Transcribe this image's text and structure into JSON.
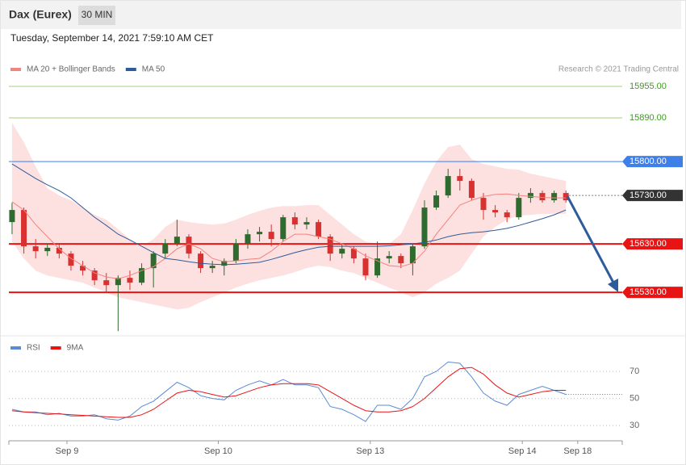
{
  "header": {
    "title": "Dax (Eurex)",
    "interval": "30 MIN",
    "timestamp": "Tuesday, September 14, 2021 7:59:10 AM CET"
  },
  "chart_data": [
    {
      "type": "candlestick",
      "credit": "Research © 2021 Trading Central",
      "candles": {
        "open": [
          15675,
          15700,
          15625,
          15615,
          15622,
          15610,
          15585,
          15575,
          15555,
          15545,
          15560,
          15550,
          15580,
          15610,
          15630,
          15645,
          15610,
          15580,
          15585,
          15595,
          15630,
          15650,
          15655,
          15640,
          15685,
          15670,
          15675,
          15645,
          15610,
          15620,
          15600,
          15565,
          15600,
          15605,
          15590,
          15625,
          15705,
          15730,
          15770,
          15760,
          15725,
          15700,
          15695,
          15685,
          15725,
          15735,
          15720,
          15735
        ],
        "high": [
          15715,
          15705,
          15640,
          15630,
          15628,
          15615,
          15595,
          15580,
          15570,
          15565,
          15575,
          15590,
          15615,
          15640,
          15680,
          15650,
          15615,
          15595,
          15600,
          15640,
          15660,
          15665,
          15670,
          15690,
          15695,
          15685,
          15680,
          15650,
          15630,
          15625,
          15610,
          15635,
          15615,
          15610,
          15630,
          15720,
          15740,
          15785,
          15785,
          15765,
          15735,
          15710,
          15700,
          15735,
          15745,
          15740,
          15740,
          15740
        ],
        "low": [
          15650,
          15610,
          15600,
          15605,
          15600,
          15575,
          15565,
          15545,
          15530,
          15450,
          15535,
          15545,
          15540,
          15600,
          15625,
          15600,
          15570,
          15570,
          15565,
          15590,
          15620,
          15635,
          15625,
          15635,
          15660,
          15660,
          15640,
          15595,
          15600,
          15590,
          15555,
          15560,
          15590,
          15580,
          15565,
          15620,
          15700,
          15725,
          15740,
          15720,
          15680,
          15685,
          15675,
          15680,
          15715,
          15715,
          15715,
          15715
        ],
        "close": [
          15700,
          15625,
          15615,
          15622,
          15610,
          15585,
          15575,
          15555,
          15545,
          15560,
          15550,
          15580,
          15610,
          15630,
          15645,
          15610,
          15580,
          15585,
          15595,
          15630,
          15650,
          15655,
          15640,
          15685,
          15670,
          15675,
          15645,
          15610,
          15620,
          15600,
          15565,
          15600,
          15605,
          15590,
          15625,
          15705,
          15730,
          15770,
          15760,
          15725,
          15700,
          15695,
          15685,
          15725,
          15735,
          15720,
          15735,
          15720
        ],
        "up_color": "#2f6b2f",
        "down_color": "#d93030"
      },
      "series": [
        {
          "name": "MA 20 + Bollinger Bands",
          "color": "#f4827e",
          "band_color": "#fde0e0",
          "values": [
            15717,
            15700,
            15670,
            15645,
            15620,
            15600,
            15585,
            15570,
            15562,
            15558,
            15565,
            15575,
            15583,
            15600,
            15620,
            15630,
            15620,
            15600,
            15593,
            15595,
            15598,
            15600,
            15615,
            15635,
            15650,
            15650,
            15645,
            15640,
            15630,
            15620,
            15605,
            15595,
            15585,
            15583,
            15590,
            15615,
            15650,
            15680,
            15710,
            15720,
            15728,
            15732,
            15733,
            15730,
            15728,
            15726,
            15725,
            15725
          ],
          "upper": [
            15880,
            15840,
            15790,
            15745,
            15730,
            15720,
            15705,
            15690,
            15680,
            15660,
            15640,
            15625,
            15640,
            15665,
            15680,
            15675,
            15672,
            15670,
            15672,
            15680,
            15690,
            15698,
            15705,
            15708,
            15708,
            15710,
            15710,
            15690,
            15670,
            15650,
            15635,
            15630,
            15630,
            15650,
            15700,
            15755,
            15800,
            15830,
            15835,
            15805,
            15795,
            15790,
            15785,
            15783,
            15775,
            15770,
            15765,
            15760
          ],
          "lower": [
            15635,
            15600,
            15575,
            15565,
            15560,
            15555,
            15550,
            15540,
            15530,
            15520,
            15515,
            15510,
            15505,
            15500,
            15495,
            15498,
            15510,
            15520,
            15530,
            15540,
            15548,
            15555,
            15560,
            15565,
            15572,
            15580,
            15585,
            15582,
            15575,
            15570,
            15560,
            15550,
            15540,
            15530,
            15520,
            15530,
            15548,
            15560,
            15575,
            15610,
            15645,
            15665,
            15680,
            15688,
            15690,
            15692,
            15692,
            15692
          ]
        },
        {
          "name": "MA 50",
          "color": "#2e5c9a",
          "values": [
            15795,
            15780,
            15765,
            15752,
            15740,
            15725,
            15705,
            15685,
            15668,
            15650,
            15638,
            15625,
            15612,
            15600,
            15597,
            15593,
            15590,
            15588,
            15587,
            15588,
            15590,
            15592,
            15598,
            15605,
            15612,
            15618,
            15623,
            15625,
            15625,
            15625,
            15625,
            15625,
            15626,
            15628,
            15630,
            15633,
            15638,
            15645,
            15650,
            15653,
            15655,
            15658,
            15662,
            15668,
            15675,
            15682,
            15690,
            15700
          ]
        }
      ],
      "levels": [
        {
          "value": 15955,
          "label": "15955.00",
          "color": "#a6cf7e",
          "text_color": "#3c9a1e",
          "tag": false
        },
        {
          "value": 15890,
          "label": "15890.00",
          "color": "#a6cf7e",
          "text_color": "#3c9a1e",
          "tag": false
        },
        {
          "value": 15800,
          "label": "15800.00",
          "color": "#3f7fe8",
          "text_color": "#ffffff",
          "tag": true
        },
        {
          "value": 15730,
          "label": "15730.00",
          "color": "#333333",
          "text_color": "#ffffff",
          "tag": true,
          "dashed": true
        },
        {
          "value": 15630,
          "label": "15630.00",
          "color": "#e81414",
          "text_color": "#ffffff",
          "tag": true
        },
        {
          "value": 15530,
          "label": "15530.00",
          "color": "#e81414",
          "text_color": "#ffffff",
          "tag": true
        }
      ],
      "xlim": [
        -0.27,
        51.78
      ],
      "ylim": [
        15447,
        15975
      ]
    },
    {
      "type": "line",
      "series": [
        {
          "name": "RSI",
          "color": "#5b8ad8",
          "values": [
            42,
            40,
            40,
            38,
            39,
            37,
            37,
            38,
            35,
            34,
            37,
            44,
            48,
            55,
            62,
            58,
            52,
            50,
            49,
            56,
            60,
            63,
            60,
            64,
            60,
            60,
            58,
            44,
            42,
            38,
            33,
            45,
            45,
            42,
            50,
            66,
            70,
            77,
            76,
            66,
            54,
            48,
            45,
            53,
            56,
            59,
            56,
            53
          ]
        },
        {
          "name": "9MA",
          "color": "#e81414",
          "values": [
            41,
            40,
            39.5,
            39,
            38.5,
            38,
            37.5,
            37,
            36.5,
            36,
            36,
            38,
            42,
            48,
            54,
            56,
            55,
            53,
            51,
            52,
            55,
            58,
            60,
            61,
            61,
            61,
            60,
            55,
            50,
            45,
            41,
            40,
            40,
            41,
            44,
            50,
            58,
            66,
            72,
            73,
            68,
            60,
            54,
            51,
            53,
            55,
            56,
            56
          ]
        }
      ],
      "xlim": [
        -0.27,
        51.78
      ],
      "ylim": [
        19.3,
        79
      ],
      "yticks": [
        30,
        50,
        70
      ],
      "xticks": [
        {
          "value": 4.66,
          "label": "Sep 9"
        },
        {
          "value": 17.5,
          "label": "Sep 10"
        },
        {
          "value": 30.4,
          "label": "Sep 13"
        },
        {
          "value": 43.3,
          "label": "Sep 14"
        },
        {
          "value": 48.0,
          "label": "Sep 18"
        }
      ]
    }
  ]
}
